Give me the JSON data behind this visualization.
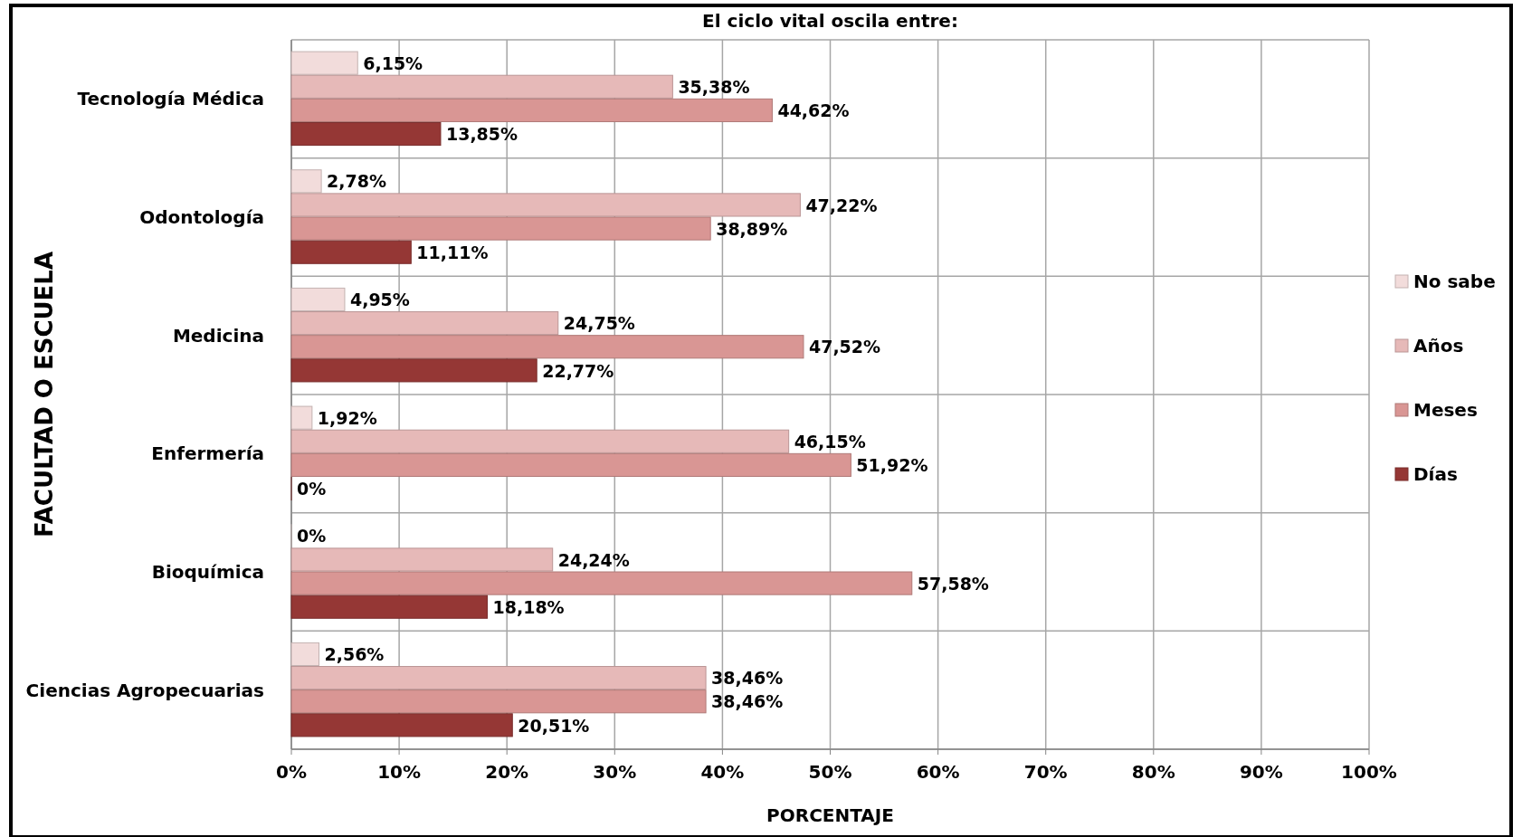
{
  "chart_data": {
    "type": "bar",
    "orientation": "horizontal",
    "title": "El ciclo vital oscila entre:",
    "xlabel": "PORCENTAJE",
    "ylabel": "FACULTAD O ESCUELA",
    "categories": [
      "Tecnología Médica",
      "Odontología",
      "Medicina",
      "Enfermería",
      "Bioquímica",
      "Ciencias Agropecuarias"
    ],
    "series": [
      {
        "name": "No sabe",
        "color": "#f2dcdb",
        "values": [
          6.15,
          2.78,
          4.95,
          1.92,
          0,
          2.56
        ],
        "value_labels": [
          "6,15%",
          "2,78%",
          "4,95%",
          "1,92%",
          "0%",
          "2,56%"
        ]
      },
      {
        "name": "Años",
        "color": "#e6b9b8",
        "values": [
          35.38,
          47.22,
          24.75,
          46.15,
          24.24,
          38.46
        ],
        "value_labels": [
          "35,38%",
          "47,22%",
          "24,75%",
          "46,15%",
          "24,24%",
          "38,46%"
        ]
      },
      {
        "name": "Meses",
        "color": "#d99694",
        "values": [
          44.62,
          38.89,
          47.52,
          51.92,
          57.58,
          38.46
        ],
        "value_labels": [
          "44,62%",
          "38,89%",
          "47,52%",
          "51,92%",
          "57,58%",
          "38,46%"
        ]
      },
      {
        "name": "Días",
        "color": "#953735",
        "values": [
          13.85,
          11.11,
          22.77,
          0,
          18.18,
          20.51
        ],
        "value_labels": [
          "13,85%",
          "11,11%",
          "22,77%",
          "0%",
          "18,18%",
          "20,51%"
        ]
      }
    ],
    "xlim": [
      0,
      100
    ],
    "xticks": [
      {
        "value": 0,
        "label": "0%"
      },
      {
        "value": 10,
        "label": "10%"
      },
      {
        "value": 20,
        "label": "20%"
      },
      {
        "value": 30,
        "label": "30%"
      },
      {
        "value": 40,
        "label": "40%"
      },
      {
        "value": 50,
        "label": "50%"
      },
      {
        "value": 60,
        "label": "60%"
      },
      {
        "value": 70,
        "label": "70%"
      },
      {
        "value": 80,
        "label": "80%"
      },
      {
        "value": 90,
        "label": "90%"
      },
      {
        "value": 100,
        "label": "100%"
      }
    ],
    "grid": true,
    "legend": "right"
  }
}
